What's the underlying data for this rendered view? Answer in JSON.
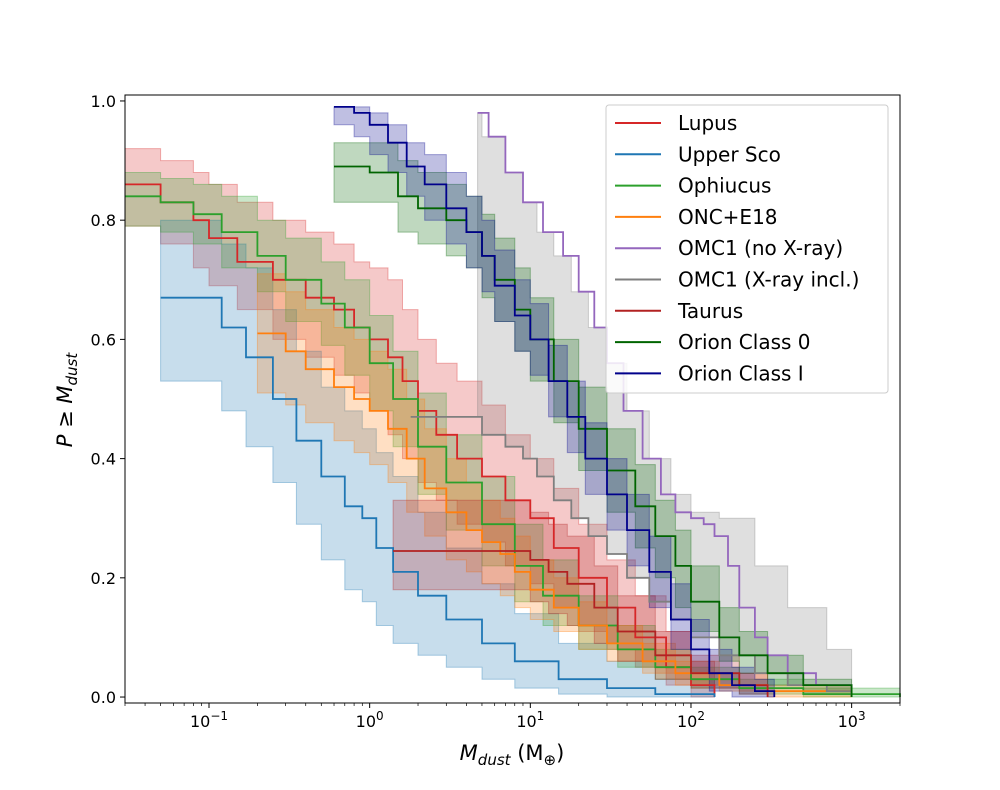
{
  "chart_data": {
    "type": "line",
    "xscale": "log",
    "xlim": [
      0.03,
      2000
    ],
    "ylim": [
      -0.01,
      1.01
    ],
    "x_ticks": [
      {
        "value": 0.1,
        "base": "10",
        "exp": "−1"
      },
      {
        "value": 1,
        "base": "10",
        "exp": "0"
      },
      {
        "value": 10,
        "base": "10",
        "exp": "1"
      },
      {
        "value": 100,
        "base": "10",
        "exp": "2"
      },
      {
        "value": 1000,
        "base": "10",
        "exp": "3"
      }
    ],
    "y_ticks": [
      "0.0",
      "0.2",
      "0.4",
      "0.6",
      "0.8",
      "1.0"
    ],
    "xlabel": {
      "main": "M",
      "sub": "dust",
      "unit": "(M",
      "unit_sub": "⊕",
      "close": ")"
    },
    "ylabel": {
      "main": "P ≥ M",
      "sub": "dust"
    },
    "legend_position": "top-right",
    "grid": false,
    "series": [
      {
        "name": "Lupus",
        "color": "#d62728",
        "x": [
          0.03,
          0.05,
          0.08,
          0.1,
          0.15,
          0.25,
          0.4,
          0.6,
          0.8,
          1.0,
          1.3,
          1.6,
          2.0,
          2.6,
          3.5,
          5,
          7,
          10,
          14,
          20,
          30,
          45,
          70,
          100,
          140
        ],
        "y": [
          0.86,
          0.83,
          0.8,
          0.77,
          0.73,
          0.7,
          0.67,
          0.65,
          0.62,
          0.6,
          0.57,
          0.53,
          0.48,
          0.44,
          0.4,
          0.37,
          0.33,
          0.3,
          0.25,
          0.2,
          0.15,
          0.1,
          0.05,
          0.02,
          0.0
        ],
        "band_upper": [
          0.92,
          0.9,
          0.88,
          0.86,
          0.83,
          0.8,
          0.78,
          0.76,
          0.73,
          0.72,
          0.7,
          0.65,
          0.6,
          0.56,
          0.53,
          0.49,
          0.44,
          0.4,
          0.35,
          0.29,
          0.23,
          0.17,
          0.11,
          0.06,
          0.02
        ],
        "band_lower": [
          0.79,
          0.76,
          0.72,
          0.69,
          0.65,
          0.6,
          0.57,
          0.54,
          0.51,
          0.48,
          0.44,
          0.4,
          0.36,
          0.33,
          0.29,
          0.26,
          0.22,
          0.19,
          0.15,
          0.11,
          0.08,
          0.05,
          0.02,
          0.0,
          0.0
        ]
      },
      {
        "name": "Upper Sco",
        "color": "#1f77b4",
        "x": [
          0.05,
          0.09,
          0.12,
          0.17,
          0.25,
          0.35,
          0.5,
          0.7,
          0.9,
          1.1,
          1.4,
          2,
          3,
          5,
          8,
          15,
          30,
          60,
          140
        ],
        "y": [
          0.67,
          0.67,
          0.62,
          0.57,
          0.5,
          0.43,
          0.37,
          0.32,
          0.3,
          0.25,
          0.21,
          0.17,
          0.13,
          0.09,
          0.06,
          0.03,
          0.015,
          0.005,
          0.0
        ],
        "band_upper": [
          0.8,
          0.8,
          0.76,
          0.72,
          0.65,
          0.58,
          0.52,
          0.48,
          0.45,
          0.41,
          0.37,
          0.31,
          0.25,
          0.19,
          0.14,
          0.09,
          0.06,
          0.03,
          0.01
        ],
        "band_lower": [
          0.53,
          0.53,
          0.48,
          0.42,
          0.36,
          0.29,
          0.23,
          0.18,
          0.16,
          0.12,
          0.09,
          0.07,
          0.05,
          0.03,
          0.015,
          0.005,
          0.0,
          0.0,
          0.0
        ]
      },
      {
        "name": "Ophiucus",
        "color": "#2ca02c",
        "x": [
          0.03,
          0.05,
          0.08,
          0.12,
          0.2,
          0.3,
          0.5,
          0.7,
          1.0,
          1.4,
          2,
          3,
          5,
          8,
          12,
          20,
          35,
          60,
          100,
          200,
          500,
          2000
        ],
        "y": [
          0.84,
          0.83,
          0.81,
          0.78,
          0.74,
          0.7,
          0.66,
          0.62,
          0.56,
          0.5,
          0.42,
          0.36,
          0.29,
          0.22,
          0.17,
          0.12,
          0.08,
          0.05,
          0.03,
          0.015,
          0.005,
          0.0
        ],
        "band_upper": [
          0.88,
          0.87,
          0.86,
          0.84,
          0.8,
          0.77,
          0.73,
          0.7,
          0.64,
          0.58,
          0.51,
          0.44,
          0.37,
          0.29,
          0.23,
          0.17,
          0.12,
          0.08,
          0.05,
          0.03,
          0.015,
          0.005
        ],
        "band_lower": [
          0.79,
          0.78,
          0.76,
          0.72,
          0.68,
          0.63,
          0.59,
          0.54,
          0.48,
          0.42,
          0.34,
          0.28,
          0.22,
          0.16,
          0.12,
          0.08,
          0.05,
          0.03,
          0.015,
          0.005,
          0.0,
          0.0
        ]
      },
      {
        "name": "ONC+E18",
        "color": "#ff7f0e",
        "x": [
          0.2,
          0.3,
          0.4,
          0.6,
          0.8,
          1.0,
          1.3,
          1.7,
          2.2,
          3,
          4,
          5,
          6.5,
          8,
          10,
          14,
          20,
          30,
          50,
          80,
          150,
          300,
          1000
        ],
        "y": [
          0.61,
          0.58,
          0.55,
          0.52,
          0.5,
          0.48,
          0.45,
          0.4,
          0.35,
          0.31,
          0.28,
          0.26,
          0.24,
          0.21,
          0.18,
          0.15,
          0.12,
          0.09,
          0.06,
          0.04,
          0.02,
          0.01,
          0.0
        ],
        "band_upper": [
          0.71,
          0.68,
          0.65,
          0.62,
          0.6,
          0.58,
          0.55,
          0.5,
          0.45,
          0.4,
          0.36,
          0.33,
          0.3,
          0.27,
          0.23,
          0.2,
          0.16,
          0.12,
          0.09,
          0.06,
          0.04,
          0.02,
          0.01
        ],
        "band_lower": [
          0.51,
          0.49,
          0.46,
          0.43,
          0.41,
          0.39,
          0.36,
          0.31,
          0.27,
          0.23,
          0.21,
          0.19,
          0.17,
          0.15,
          0.13,
          0.11,
          0.08,
          0.06,
          0.04,
          0.02,
          0.01,
          0.0,
          0.0
        ]
      },
      {
        "name": "OMC1 (no X-ray)",
        "color": "#9467bd",
        "x": [
          4.7,
          5.5,
          7,
          9,
          12,
          16,
          20,
          25,
          30,
          38,
          50,
          65,
          80,
          100,
          120,
          140,
          170,
          200,
          250,
          300,
          400,
          600,
          1000
        ],
        "y": [
          0.98,
          0.94,
          0.88,
          0.83,
          0.78,
          0.74,
          0.68,
          0.62,
          0.56,
          0.48,
          0.4,
          0.34,
          0.31,
          0.3,
          0.29,
          0.27,
          0.22,
          0.15,
          0.1,
          0.07,
          0.04,
          0.02,
          0.0
        ]
      },
      {
        "name": "OMC1 (X-ray incl.)",
        "color": "#7f7f7f",
        "x": [
          1.8,
          4.7,
          5,
          7,
          9,
          11,
          14,
          18,
          23,
          30,
          40,
          55,
          75,
          100,
          150,
          250,
          400,
          700,
          1000
        ],
        "y": [
          0.47,
          0.47,
          0.44,
          0.42,
          0.4,
          0.37,
          0.33,
          0.3,
          0.27,
          0.24,
          0.2,
          0.16,
          0.13,
          0.1,
          0.07,
          0.04,
          0.02,
          0.01,
          0.0
        ],
        "band_upper": [
          0.47,
          0.98,
          0.94,
          0.88,
          0.83,
          0.78,
          0.74,
          0.68,
          0.62,
          0.56,
          0.48,
          0.4,
          0.34,
          0.31,
          0.3,
          0.22,
          0.15,
          0.08,
          0.05
        ],
        "band_lower": [
          0.47,
          0.47,
          0.44,
          0.42,
          0.4,
          0.37,
          0.33,
          0.3,
          0.27,
          0.24,
          0.2,
          0.16,
          0.13,
          0.1,
          0.07,
          0.04,
          0.02,
          0.01,
          0.0
        ]
      },
      {
        "name": "Taurus",
        "color": "#b22222",
        "x": [
          1.4,
          2,
          3,
          5,
          8,
          10,
          13,
          17,
          25,
          35,
          60,
          100,
          200,
          300
        ],
        "y": [
          0.245,
          0.245,
          0.245,
          0.245,
          0.245,
          0.23,
          0.21,
          0.19,
          0.15,
          0.11,
          0.07,
          0.04,
          0.02,
          0.0
        ],
        "band_upper": [
          0.33,
          0.33,
          0.33,
          0.33,
          0.33,
          0.31,
          0.29,
          0.27,
          0.22,
          0.17,
          0.11,
          0.07,
          0.04,
          0.02
        ],
        "band_lower": [
          0.18,
          0.18,
          0.18,
          0.18,
          0.18,
          0.16,
          0.14,
          0.12,
          0.09,
          0.06,
          0.03,
          0.015,
          0.005,
          0.0
        ]
      },
      {
        "name": "Orion Class 0",
        "color": "#006400",
        "x": [
          0.6,
          1.0,
          1.5,
          2,
          3,
          4,
          5,
          6,
          8,
          10,
          14,
          20,
          30,
          45,
          60,
          80,
          100,
          150,
          200,
          300,
          500,
          1000
        ],
        "y": [
          0.89,
          0.88,
          0.84,
          0.82,
          0.8,
          0.78,
          0.74,
          0.7,
          0.65,
          0.6,
          0.53,
          0.45,
          0.38,
          0.32,
          0.27,
          0.22,
          0.16,
          0.1,
          0.07,
          0.04,
          0.02,
          0.0
        ],
        "band_upper": [
          0.93,
          0.93,
          0.9,
          0.88,
          0.86,
          0.84,
          0.81,
          0.77,
          0.72,
          0.67,
          0.6,
          0.52,
          0.45,
          0.39,
          0.33,
          0.28,
          0.22,
          0.15,
          0.11,
          0.07,
          0.03,
          0.01
        ],
        "band_lower": [
          0.83,
          0.83,
          0.78,
          0.76,
          0.74,
          0.72,
          0.67,
          0.63,
          0.58,
          0.53,
          0.46,
          0.38,
          0.31,
          0.25,
          0.2,
          0.15,
          0.11,
          0.06,
          0.04,
          0.02,
          0.005,
          0.0
        ]
      },
      {
        "name": "Orion Class I",
        "color": "#00008b",
        "x": [
          0.6,
          0.8,
          1.0,
          1.3,
          1.7,
          2.2,
          3,
          4,
          5,
          6,
          8,
          10,
          13,
          17,
          22,
          30,
          40,
          55,
          75,
          100,
          130,
          180,
          250,
          330
        ],
        "y": [
          0.99,
          0.98,
          0.96,
          0.93,
          0.89,
          0.86,
          0.82,
          0.78,
          0.74,
          0.69,
          0.64,
          0.6,
          0.53,
          0.47,
          0.4,
          0.34,
          0.28,
          0.21,
          0.13,
          0.08,
          0.04,
          0.02,
          0.01,
          0.0
        ],
        "band_upper": [
          0.99,
          0.99,
          0.98,
          0.96,
          0.93,
          0.91,
          0.88,
          0.84,
          0.8,
          0.75,
          0.7,
          0.66,
          0.59,
          0.53,
          0.46,
          0.4,
          0.34,
          0.27,
          0.19,
          0.13,
          0.08,
          0.05,
          0.03,
          0.01
        ],
        "band_lower": [
          0.96,
          0.94,
          0.91,
          0.88,
          0.84,
          0.8,
          0.76,
          0.72,
          0.68,
          0.63,
          0.58,
          0.54,
          0.47,
          0.41,
          0.34,
          0.28,
          0.22,
          0.15,
          0.08,
          0.04,
          0.01,
          0.0,
          0.0,
          0.0
        ]
      }
    ]
  }
}
